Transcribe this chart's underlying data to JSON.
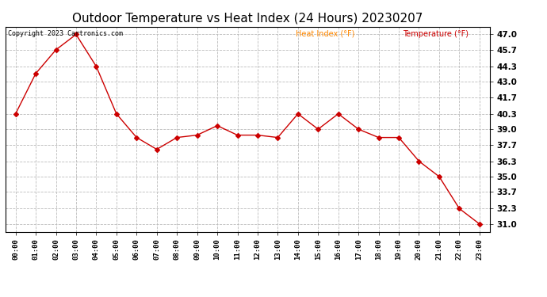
{
  "title": "Outdoor Temperature vs Heat Index (24 Hours) 20230207",
  "copyright_text": "Copyright 2023 Cartronics.com",
  "legend_heat_index": "Heat Index (°F)",
  "legend_temperature": "Temperature (°F)",
  "x_labels": [
    "00:00",
    "01:00",
    "02:00",
    "03:00",
    "04:00",
    "05:00",
    "06:00",
    "07:00",
    "08:00",
    "09:00",
    "10:00",
    "11:00",
    "12:00",
    "13:00",
    "14:00",
    "15:00",
    "16:00",
    "17:00",
    "18:00",
    "19:00",
    "20:00",
    "21:00",
    "22:00",
    "23:00"
  ],
  "temperature": [
    40.3,
    43.7,
    45.7,
    47.0,
    44.3,
    40.3,
    38.3,
    37.3,
    38.3,
    38.5,
    39.3,
    38.5,
    38.5,
    38.3,
    40.3,
    39.0,
    40.3,
    39.0,
    38.3,
    38.3,
    36.3,
    35.0,
    32.3,
    31.0
  ],
  "heat_index": [
    40.3,
    43.7,
    45.7,
    47.0,
    44.3,
    40.3,
    38.3,
    37.3,
    38.3,
    38.5,
    39.3,
    38.5,
    38.5,
    38.3,
    40.3,
    39.0,
    40.3,
    39.0,
    38.3,
    38.3,
    36.3,
    35.0,
    32.3,
    31.0
  ],
  "y_ticks": [
    31.0,
    32.3,
    33.7,
    35.0,
    36.3,
    37.7,
    39.0,
    40.3,
    41.7,
    43.0,
    44.3,
    45.7,
    47.0
  ],
  "ylim": [
    30.35,
    47.65
  ],
  "temp_color": "#cc0000",
  "heat_index_color": "#ff8800",
  "background_color": "#ffffff",
  "grid_color": "#bbbbbb",
  "title_fontsize": 11,
  "marker": "D",
  "marker_size": 3
}
